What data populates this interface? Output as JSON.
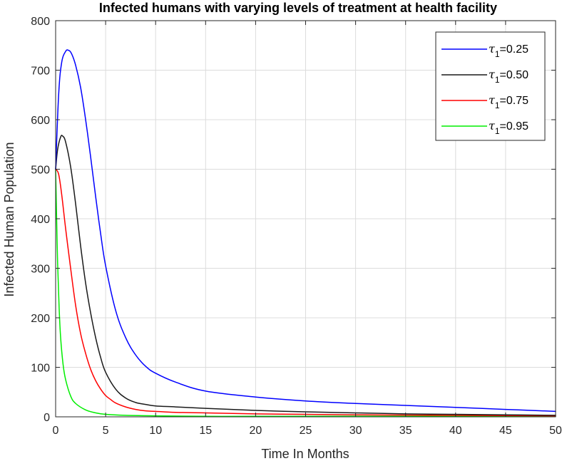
{
  "chart_data": {
    "type": "line",
    "title": "Infected humans with varying levels of treatment at health facility",
    "xlabel": "Time In Months",
    "ylabel": "Infected Human Population",
    "xlim": [
      0,
      50
    ],
    "ylim": [
      0,
      800
    ],
    "xticks": [
      0,
      5,
      10,
      15,
      20,
      25,
      30,
      35,
      40,
      45,
      50
    ],
    "yticks": [
      0,
      100,
      200,
      300,
      400,
      500,
      600,
      700,
      800
    ],
    "grid": true,
    "legend_position": "top-right",
    "series": [
      {
        "name": "τ1=0.25",
        "legend_symbol": "τ",
        "legend_subscript": "1",
        "legend_value": "=0.25",
        "color": "#0000ff",
        "x": [
          0,
          0.3,
          0.6,
          1.0,
          1.3,
          1.6,
          2,
          2.5,
          3,
          3.5,
          4,
          4.5,
          5,
          6,
          7,
          8,
          9,
          10,
          12,
          15,
          20,
          25,
          30,
          35,
          40,
          45,
          50
        ],
        "y": [
          500,
          650,
          715,
          738,
          740,
          733,
          710,
          665,
          600,
          525,
          445,
          370,
          305,
          215,
          160,
          125,
          102,
          88,
          70,
          52,
          40,
          32,
          27,
          23,
          19,
          15,
          11
        ]
      },
      {
        "name": "τ1=0.50",
        "legend_symbol": "τ",
        "legend_subscript": "1",
        "legend_value": "=0.50",
        "color": "#1a1a1a",
        "x": [
          0,
          0.2,
          0.5,
          0.7,
          1.0,
          1.5,
          2,
          2.5,
          3,
          3.5,
          4,
          4.5,
          5,
          6,
          7,
          8,
          9,
          10,
          12,
          15,
          20,
          25,
          30,
          35,
          40,
          45,
          50
        ],
        "y": [
          500,
          540,
          565,
          567,
          555,
          505,
          430,
          345,
          270,
          210,
          160,
          120,
          90,
          56,
          38,
          29,
          25,
          22,
          20,
          17,
          13,
          10,
          8,
          6,
          5,
          4,
          3
        ]
      },
      {
        "name": "τ1=0.75",
        "legend_symbol": "τ",
        "legend_subscript": "1",
        "legend_value": "=0.75",
        "color": "#ff0000",
        "x": [
          0,
          0.3,
          0.6,
          1.0,
          1.5,
          2,
          2.5,
          3,
          3.5,
          4,
          4.5,
          5,
          5.5,
          6,
          7,
          8,
          9,
          10,
          12,
          15,
          20,
          25,
          30,
          40,
          50
        ],
        "y": [
          500,
          490,
          450,
          380,
          300,
          225,
          168,
          128,
          96,
          73,
          56,
          43,
          35,
          28,
          20,
          15,
          12,
          11,
          9,
          8,
          6,
          5,
          4,
          3,
          2
        ]
      },
      {
        "name": "τ1=0.95",
        "legend_symbol": "τ",
        "legend_subscript": "1",
        "legend_value": "=0.95",
        "color": "#00ee00",
        "x": [
          0,
          0.1,
          0.2,
          0.35,
          0.5,
          0.75,
          1.0,
          1.5,
          2,
          3,
          4,
          5,
          7,
          10,
          15,
          20,
          30,
          40,
          50
        ],
        "y": [
          500,
          400,
          310,
          220,
          160,
          105,
          75,
          42,
          27,
          14,
          8,
          5,
          3,
          2,
          1,
          1,
          1,
          1,
          1
        ]
      }
    ]
  }
}
